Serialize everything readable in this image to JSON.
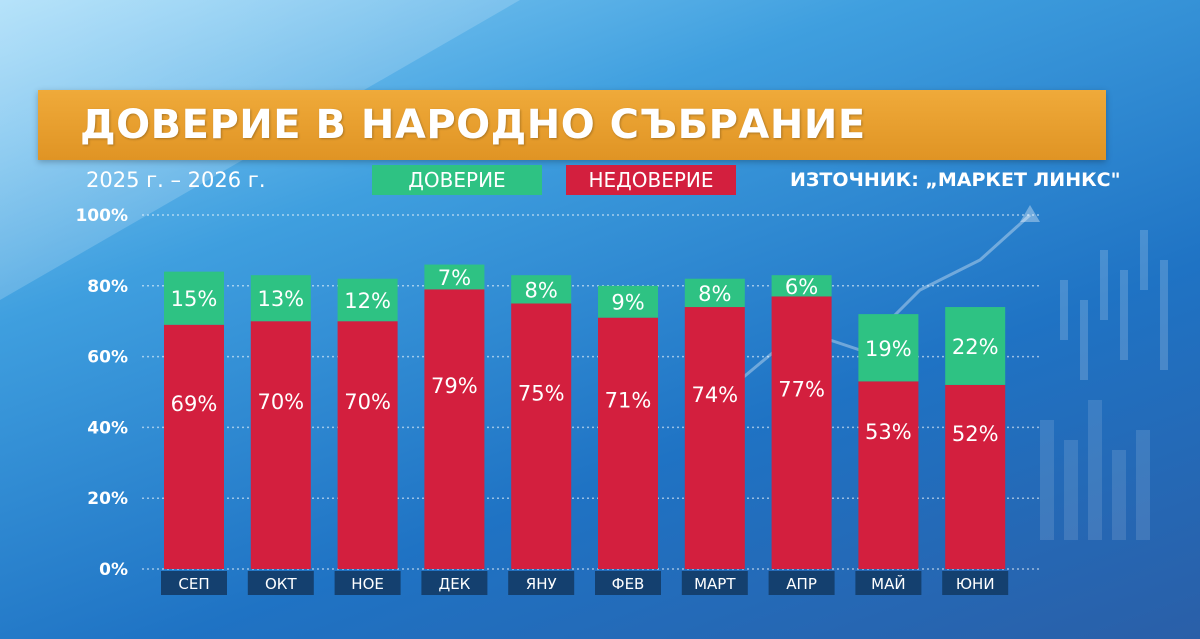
{
  "header": {
    "title": "ДОВЕРИЕ В НАРОДНО СЪБРАНИЕ",
    "period": "2025 г. – 2026 г.",
    "source": "ИЗТОЧНИК: „МАРКЕТ ЛИНКС\""
  },
  "colors": {
    "trust": "#2ec283",
    "distrust": "#d31f3e",
    "category_box": "#14406f",
    "title_bar": "#e89e2e"
  },
  "chart_data": {
    "type": "bar",
    "stacked": true,
    "categories": [
      "СЕП",
      "ОКТ",
      "НОЕ",
      "ДЕК",
      "ЯНУ",
      "ФЕВ",
      "МАРТ",
      "АПР",
      "МАЙ",
      "ЮНИ"
    ],
    "series": [
      {
        "name": "НЕДОВЕРИЕ",
        "values": [
          69,
          70,
          70,
          79,
          75,
          71,
          74,
          77,
          53,
          52
        ]
      },
      {
        "name": "ДОВЕРИЕ",
        "values": [
          15,
          13,
          12,
          7,
          8,
          9,
          8,
          6,
          19,
          22
        ]
      }
    ],
    "data_labels": {
      "НЕДОВЕРИЕ": [
        "69%",
        "70%",
        "70%",
        "79%",
        "75%",
        "71%",
        "74%",
        "77%",
        "53%",
        "52%"
      ],
      "ДОВЕРИЕ": [
        "15%",
        "13%",
        "12%",
        "7%",
        "8%",
        "9%",
        "8%",
        "6%",
        "19%",
        "22%"
      ]
    },
    "y_ticks": [
      "0%",
      "20%",
      "40%",
      "60%",
      "80%",
      "100%"
    ],
    "y_tick_values": [
      0,
      20,
      40,
      60,
      80,
      100
    ],
    "ylim": [
      0,
      100
    ],
    "grid": true,
    "legend_position": "top-center"
  }
}
